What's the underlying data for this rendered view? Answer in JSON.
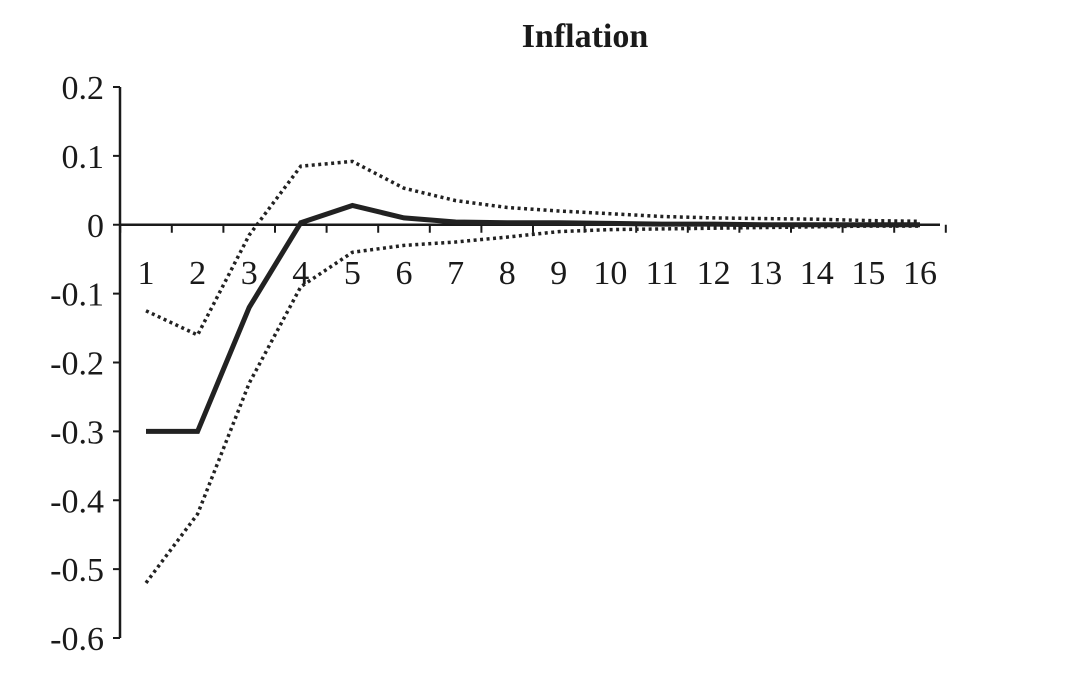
{
  "chart_data": {
    "type": "line",
    "title": "Inflation",
    "xlabel": "",
    "ylabel": "",
    "categories": [
      "1",
      "2",
      "3",
      "4",
      "5",
      "6",
      "7",
      "8",
      "9",
      "10",
      "11",
      "12",
      "13",
      "14",
      "15",
      "16"
    ],
    "ylim": [
      -0.6,
      0.2
    ],
    "yticks": [
      "0.2",
      "0.1",
      "0",
      "-0.1",
      "-0.2",
      "-0.3",
      "-0.4",
      "-0.5",
      "-0.6"
    ],
    "grid": false,
    "legend": "none",
    "series": [
      {
        "style": "solid",
        "values": [
          -0.3,
          -0.3,
          -0.12,
          0.003,
          0.028,
          0.01,
          0.004,
          0.003,
          0.003,
          0.002,
          0.001,
          0.001,
          0.0,
          0.0,
          0.0,
          0.0
        ]
      },
      {
        "style": "dotted",
        "values": [
          -0.125,
          -0.16,
          -0.015,
          0.085,
          0.092,
          0.053,
          0.035,
          0.025,
          0.02,
          0.016,
          0.012,
          0.01,
          0.009,
          0.008,
          0.006,
          0.005
        ]
      },
      {
        "style": "dotted",
        "values": [
          -0.52,
          -0.42,
          -0.23,
          -0.09,
          -0.04,
          -0.03,
          -0.025,
          -0.018,
          -0.01,
          -0.007,
          -0.006,
          -0.005,
          -0.004,
          -0.003,
          -0.002,
          -0.002
        ]
      }
    ]
  }
}
